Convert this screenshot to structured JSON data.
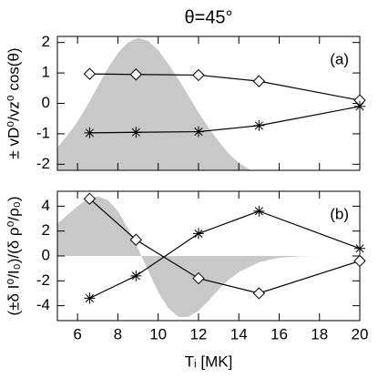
{
  "chart_data": [
    {
      "type": "line",
      "title": "θ=45°",
      "panel_label": "(a)",
      "ylabel": "± vD⁰/vz⁰ cos(θ)",
      "x": [
        6.6,
        8.9,
        12,
        15,
        20
      ],
      "xlim": [
        5,
        20
      ],
      "xticks": [
        6,
        8,
        10,
        12,
        14,
        16,
        18,
        20
      ],
      "ylim": [
        -2.2,
        2.2
      ],
      "yticks": [
        -2,
        -1,
        0,
        1,
        2
      ],
      "series": [
        {
          "marker": "diamond",
          "color": "#000000",
          "values": [
            0.97,
            0.95,
            0.93,
            0.73,
            0.1
          ]
        },
        {
          "marker": "star",
          "color": "#000000",
          "values": [
            -0.97,
            -0.95,
            -0.93,
            -0.73,
            -0.1
          ]
        }
      ],
      "shade": {
        "color": "#c8c8c8",
        "base": -2.2,
        "x": [
          5,
          5.5,
          6,
          6.5,
          7,
          7.5,
          8,
          8.5,
          9,
          9.5,
          10,
          10.5,
          11,
          11.5,
          12,
          12.5,
          13,
          13.5,
          14,
          14.6
        ],
        "values": [
          -1.45,
          -1.05,
          -0.6,
          -0.05,
          0.55,
          1.15,
          1.65,
          2.0,
          2.15,
          2.05,
          1.75,
          1.3,
          0.8,
          0.25,
          -0.3,
          -0.8,
          -1.25,
          -1.65,
          -1.95,
          -2.2
        ]
      }
    },
    {
      "type": "line",
      "panel_label": "(b)",
      "ylabel": "(±δ I⁰/I₀)/(δ ρ⁰/ρ₀)",
      "xlabel": "Tᵢ [MK]",
      "x": [
        6.6,
        8.9,
        12,
        15,
        20
      ],
      "xlim": [
        5,
        20
      ],
      "xticks": [
        6,
        8,
        10,
        12,
        14,
        16,
        18,
        20
      ],
      "ylim": [
        -5.2,
        5.2
      ],
      "yticks": [
        -4,
        -2,
        0,
        2,
        4
      ],
      "series": [
        {
          "marker": "diamond",
          "color": "#000000",
          "values": [
            4.6,
            1.3,
            -1.8,
            -3.0,
            -0.4
          ]
        },
        {
          "marker": "star",
          "color": "#000000",
          "values": [
            -3.4,
            -1.6,
            1.8,
            3.6,
            0.6
          ]
        }
      ],
      "shade": {
        "color": "#c8c8c8",
        "base": 0,
        "x": [
          5,
          5.5,
          6,
          6.5,
          7,
          7.5,
          8,
          8.5,
          9,
          9.5,
          10,
          10.5,
          11,
          11.5,
          12,
          12.5,
          13,
          13.5,
          14,
          15,
          16,
          17,
          18,
          20
        ],
        "values": [
          2.6,
          3.3,
          4.0,
          4.6,
          4.8,
          4.5,
          3.6,
          2.2,
          0.6,
          -1.2,
          -2.9,
          -4.2,
          -4.9,
          -4.9,
          -4.4,
          -3.6,
          -2.7,
          -1.9,
          -1.3,
          -0.5,
          -0.15,
          -0.03,
          0,
          0
        ]
      }
    }
  ]
}
